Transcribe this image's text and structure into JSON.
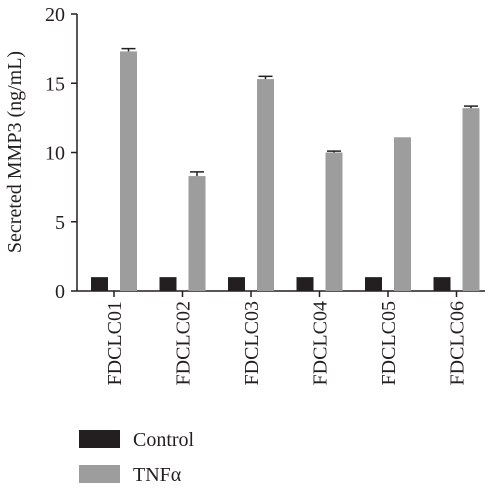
{
  "chart_data": {
    "type": "bar",
    "title": "",
    "xlabel": "",
    "ylabel": "Secreted MMP3 (ng/mL)",
    "ylim": [
      0,
      20
    ],
    "yticks": [
      0,
      5,
      10,
      15,
      20
    ],
    "categories": [
      "FDCLC01",
      "FDCLC02",
      "FDCLC03",
      "FDCLC04",
      "FDCLC05",
      "FDCLC06"
    ],
    "series": [
      {
        "name": "Control",
        "color": "#231f20",
        "values": [
          1,
          1,
          1,
          1,
          1,
          1
        ],
        "errors": [
          0,
          0,
          0,
          0,
          0,
          0
        ]
      },
      {
        "name": "TNFα",
        "color": "#9d9d9d",
        "values": [
          17.3,
          8.3,
          15.3,
          10.0,
          11.1,
          13.2
        ],
        "errors": [
          0.2,
          0.3,
          0.2,
          0.1,
          0,
          0.15
        ]
      }
    ],
    "grid": false,
    "legend_position": "bottom-left"
  }
}
